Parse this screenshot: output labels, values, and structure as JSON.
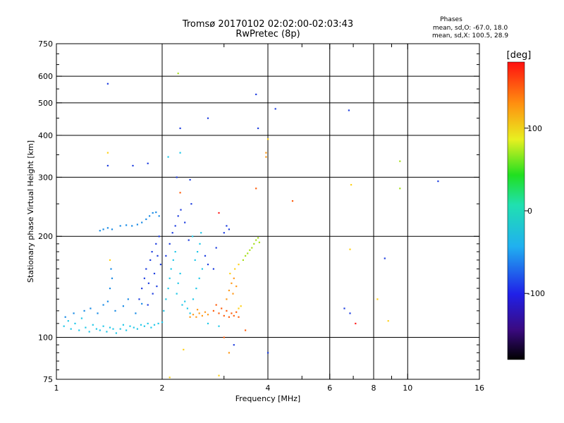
{
  "chart_data": {
    "type": "scatter",
    "title_line1": "Tromsø 20170102 02:02:00-02:03:43",
    "title_line2": "RwPretec (8p)",
    "stats": {
      "title": "Phases",
      "line_o": "mean, sd,O: -67.0, 18.0",
      "line_x": "mean, sd,X: 100.5, 28.9"
    },
    "xlabel": "Frequency [MHz]",
    "ylabel": "Stationary phase Virtual Height [km]",
    "x_scale": "log",
    "y_scale": "log",
    "xlim": [
      1,
      16
    ],
    "ylim": [
      75,
      750
    ],
    "xticks": [
      1,
      2,
      4,
      6,
      8,
      10,
      16
    ],
    "xticks_minor": [
      3,
      5,
      7,
      9
    ],
    "yticks": [
      75,
      100,
      200,
      300,
      400,
      500,
      600,
      750
    ],
    "grid_x": [
      2,
      4,
      6,
      8,
      10
    ],
    "grid_y": [
      100,
      200,
      300,
      400,
      500,
      600
    ],
    "colorbar": {
      "label": "[deg]",
      "range": [
        -180,
        180
      ],
      "ticks": [
        100,
        0,
        -100
      ]
    },
    "grid": true,
    "points": [
      {
        "f": 1.05,
        "h": 108,
        "c": "#22c8e8"
      },
      {
        "f": 1.08,
        "h": 112,
        "c": "#22c8e8"
      },
      {
        "f": 1.1,
        "h": 106,
        "c": "#22c8e8"
      },
      {
        "f": 1.13,
        "h": 110,
        "c": "#22c8e8"
      },
      {
        "f": 1.16,
        "h": 105,
        "c": "#22c8e8"
      },
      {
        "f": 1.18,
        "h": 114,
        "c": "#22c8e8"
      },
      {
        "f": 1.21,
        "h": 107,
        "c": "#22c8e8"
      },
      {
        "f": 1.24,
        "h": 104,
        "c": "#22c8e8"
      },
      {
        "f": 1.27,
        "h": 109,
        "c": "#22c8e8"
      },
      {
        "f": 1.3,
        "h": 106,
        "c": "#22c8e8"
      },
      {
        "f": 1.33,
        "h": 105,
        "c": "#22c8e8"
      },
      {
        "f": 1.36,
        "h": 108,
        "c": "#22c8e8"
      },
      {
        "f": 1.39,
        "h": 104,
        "c": "#22c8e8"
      },
      {
        "f": 1.42,
        "h": 107,
        "c": "#22c8e8"
      },
      {
        "f": 1.45,
        "h": 106,
        "c": "#22c8e8"
      },
      {
        "f": 1.48,
        "h": 103,
        "c": "#22c8e8"
      },
      {
        "f": 1.52,
        "h": 106,
        "c": "#22c8e8"
      },
      {
        "f": 1.55,
        "h": 109,
        "c": "#22c8e8"
      },
      {
        "f": 1.58,
        "h": 105,
        "c": "#22c8e8"
      },
      {
        "f": 1.62,
        "h": 108,
        "c": "#22c8e8"
      },
      {
        "f": 1.66,
        "h": 107,
        "c": "#22c8e8"
      },
      {
        "f": 1.7,
        "h": 106,
        "c": "#22c8e8"
      },
      {
        "f": 1.74,
        "h": 109,
        "c": "#22c8e8"
      },
      {
        "f": 1.78,
        "h": 108,
        "c": "#22c8e8"
      },
      {
        "f": 1.82,
        "h": 110,
        "c": "#22c8e8"
      },
      {
        "f": 1.86,
        "h": 107,
        "c": "#22c8e8"
      },
      {
        "f": 1.9,
        "h": 109,
        "c": "#22c8e8"
      },
      {
        "f": 1.95,
        "h": 110,
        "c": "#22c8e8"
      },
      {
        "f": 2.0,
        "h": 111,
        "c": "#22c8e8"
      },
      {
        "f": 1.06,
        "h": 115,
        "c": "#1a8ce6"
      },
      {
        "f": 1.12,
        "h": 118,
        "c": "#1a8ce6"
      },
      {
        "f": 1.2,
        "h": 120,
        "c": "#1a8ce6"
      },
      {
        "f": 1.25,
        "h": 122,
        "c": "#1a8ce6"
      },
      {
        "f": 1.31,
        "h": 118,
        "c": "#1a8ce6"
      },
      {
        "f": 1.36,
        "h": 125,
        "c": "#1a8ce6"
      },
      {
        "f": 1.4,
        "h": 128,
        "c": "#1a8ce6"
      },
      {
        "f": 1.47,
        "h": 120,
        "c": "#1a8ce6"
      },
      {
        "f": 1.55,
        "h": 124,
        "c": "#1a8ce6"
      },
      {
        "f": 1.6,
        "h": 130,
        "c": "#1a8ce6"
      },
      {
        "f": 1.68,
        "h": 118,
        "c": "#1a8ce6"
      },
      {
        "f": 1.75,
        "h": 126,
        "c": "#1a8ce6"
      },
      {
        "f": 1.42,
        "h": 140,
        "c": "#1a8ce6"
      },
      {
        "f": 1.44,
        "h": 150,
        "c": "#1a8ce6"
      },
      {
        "f": 1.43,
        "h": 160,
        "c": "#1a8ce6"
      },
      {
        "f": 1.33,
        "h": 208,
        "c": "#1a8ce6"
      },
      {
        "f": 1.36,
        "h": 210,
        "c": "#1a8ce6"
      },
      {
        "f": 1.4,
        "h": 212,
        "c": "#1a8ce6"
      },
      {
        "f": 1.44,
        "h": 210,
        "c": "#1a8ce6"
      },
      {
        "f": 1.52,
        "h": 215,
        "c": "#1a8ce6"
      },
      {
        "f": 1.58,
        "h": 216,
        "c": "#1a8ce6"
      },
      {
        "f": 1.64,
        "h": 215,
        "c": "#1a8ce6"
      },
      {
        "f": 1.7,
        "h": 217,
        "c": "#1a8ce6"
      },
      {
        "f": 1.75,
        "h": 220,
        "c": "#1a8ce6"
      },
      {
        "f": 1.8,
        "h": 225,
        "c": "#1a8ce6"
      },
      {
        "f": 1.84,
        "h": 230,
        "c": "#1a8ce6"
      },
      {
        "f": 1.88,
        "h": 235,
        "c": "#1a8ce6"
      },
      {
        "f": 1.92,
        "h": 236,
        "c": "#1a8ce6"
      },
      {
        "f": 1.96,
        "h": 230,
        "c": "#1a8ce6"
      },
      {
        "f": 1.72,
        "h": 130,
        "c": "#2040e0"
      },
      {
        "f": 1.75,
        "h": 140,
        "c": "#2040e0"
      },
      {
        "f": 1.78,
        "h": 150,
        "c": "#2040e0"
      },
      {
        "f": 1.8,
        "h": 160,
        "c": "#2040e0"
      },
      {
        "f": 1.83,
        "h": 145,
        "c": "#2040e0"
      },
      {
        "f": 1.85,
        "h": 170,
        "c": "#2040e0"
      },
      {
        "f": 1.87,
        "h": 180,
        "c": "#2040e0"
      },
      {
        "f": 1.9,
        "h": 155,
        "c": "#2040e0"
      },
      {
        "f": 1.92,
        "h": 190,
        "c": "#2040e0"
      },
      {
        "f": 1.94,
        "h": 175,
        "c": "#2040e0"
      },
      {
        "f": 1.96,
        "h": 200,
        "c": "#2040e0"
      },
      {
        "f": 1.98,
        "h": 165,
        "c": "#2040e0"
      },
      {
        "f": 1.82,
        "h": 125,
        "c": "#2040e0"
      },
      {
        "f": 1.88,
        "h": 135,
        "c": "#2040e0"
      },
      {
        "f": 1.93,
        "h": 142,
        "c": "#2040e0"
      },
      {
        "f": 2.02,
        "h": 120,
        "c": "#22c8e8"
      },
      {
        "f": 2.05,
        "h": 130,
        "c": "#22c8e8"
      },
      {
        "f": 2.08,
        "h": 140,
        "c": "#22c8e8"
      },
      {
        "f": 2.1,
        "h": 150,
        "c": "#22c8e8"
      },
      {
        "f": 2.12,
        "h": 160,
        "c": "#22c8e8"
      },
      {
        "f": 2.15,
        "h": 170,
        "c": "#22c8e8"
      },
      {
        "f": 2.18,
        "h": 180,
        "c": "#22c8e8"
      },
      {
        "f": 2.2,
        "h": 135,
        "c": "#22c8e8"
      },
      {
        "f": 2.22,
        "h": 145,
        "c": "#22c8e8"
      },
      {
        "f": 2.25,
        "h": 155,
        "c": "#22c8e8"
      },
      {
        "f": 2.28,
        "h": 125,
        "c": "#22c8e8"
      },
      {
        "f": 2.32,
        "h": 128,
        "c": "#22c8e8"
      },
      {
        "f": 2.36,
        "h": 122,
        "c": "#22c8e8"
      },
      {
        "f": 2.4,
        "h": 118,
        "c": "#22c8e8"
      },
      {
        "f": 2.45,
        "h": 130,
        "c": "#22c8e8"
      },
      {
        "f": 2.5,
        "h": 140,
        "c": "#22c8e8"
      },
      {
        "f": 2.55,
        "h": 150,
        "c": "#22c8e8"
      },
      {
        "f": 2.6,
        "h": 160,
        "c": "#22c8e8"
      },
      {
        "f": 2.48,
        "h": 170,
        "c": "#22c8e8"
      },
      {
        "f": 2.52,
        "h": 180,
        "c": "#22c8e8"
      },
      {
        "f": 2.56,
        "h": 190,
        "c": "#22c8e8"
      },
      {
        "f": 2.44,
        "h": 200,
        "c": "#22c8e8"
      },
      {
        "f": 2.58,
        "h": 205,
        "c": "#22c8e8"
      },
      {
        "f": 2.05,
        "h": 175,
        "c": "#2040e0"
      },
      {
        "f": 2.1,
        "h": 190,
        "c": "#2040e0"
      },
      {
        "f": 2.14,
        "h": 205,
        "c": "#2040e0"
      },
      {
        "f": 2.18,
        "h": 215,
        "c": "#2040e0"
      },
      {
        "f": 2.22,
        "h": 230,
        "c": "#2040e0"
      },
      {
        "f": 2.26,
        "h": 240,
        "c": "#2040e0"
      },
      {
        "f": 2.32,
        "h": 220,
        "c": "#2040e0"
      },
      {
        "f": 2.38,
        "h": 195,
        "c": "#2040e0"
      },
      {
        "f": 2.42,
        "h": 250,
        "c": "#2040e0"
      },
      {
        "f": 2.65,
        "h": 175,
        "c": "#2040e0"
      },
      {
        "f": 2.7,
        "h": 165,
        "c": "#2040e0"
      },
      {
        "f": 2.8,
        "h": 160,
        "c": "#2040e0"
      },
      {
        "f": 2.4,
        "h": 115,
        "c": "#ff9a1a"
      },
      {
        "f": 2.45,
        "h": 117,
        "c": "#ff9a1a"
      },
      {
        "f": 2.5,
        "h": 115,
        "c": "#ff9a1a"
      },
      {
        "f": 2.55,
        "h": 118,
        "c": "#ff9a1a"
      },
      {
        "f": 2.6,
        "h": 116,
        "c": "#ff9a1a"
      },
      {
        "f": 2.65,
        "h": 119,
        "c": "#ff9a1a"
      },
      {
        "f": 2.7,
        "h": 117,
        "c": "#ff9a1a"
      },
      {
        "f": 2.52,
        "h": 121,
        "c": "#ff9a1a"
      },
      {
        "f": 2.8,
        "h": 120,
        "c": "#ff6010"
      },
      {
        "f": 2.85,
        "h": 125,
        "c": "#ff6010"
      },
      {
        "f": 2.9,
        "h": 118,
        "c": "#ff6010"
      },
      {
        "f": 2.95,
        "h": 122,
        "c": "#ff6010"
      },
      {
        "f": 3.0,
        "h": 116,
        "c": "#ff6010"
      },
      {
        "f": 3.05,
        "h": 120,
        "c": "#ff6010"
      },
      {
        "f": 3.1,
        "h": 115,
        "c": "#ff6010"
      },
      {
        "f": 3.15,
        "h": 118,
        "c": "#ff6010"
      },
      {
        "f": 3.2,
        "h": 116,
        "c": "#ff6010"
      },
      {
        "f": 3.25,
        "h": 119,
        "c": "#ff6010"
      },
      {
        "f": 3.3,
        "h": 115,
        "c": "#ff6010"
      },
      {
        "f": 3.05,
        "h": 130,
        "c": "#ff9a1a"
      },
      {
        "f": 3.1,
        "h": 138,
        "c": "#ff9a1a"
      },
      {
        "f": 3.15,
        "h": 145,
        "c": "#ff9a1a"
      },
      {
        "f": 3.2,
        "h": 150,
        "c": "#ff9a1a"
      },
      {
        "f": 3.18,
        "h": 135,
        "c": "#ff9a1a"
      },
      {
        "f": 3.25,
        "h": 142,
        "c": "#ff9a1a"
      },
      {
        "f": 3.12,
        "h": 155,
        "c": "#ffd21a"
      },
      {
        "f": 3.22,
        "h": 160,
        "c": "#ffd21a"
      },
      {
        "f": 3.3,
        "h": 165,
        "c": "#ffd21a"
      },
      {
        "f": 3.4,
        "h": 170,
        "c": "#a8e020"
      },
      {
        "f": 3.45,
        "h": 175,
        "c": "#a8e020"
      },
      {
        "f": 3.5,
        "h": 178,
        "c": "#a8e020"
      },
      {
        "f": 3.55,
        "h": 182,
        "c": "#a8e020"
      },
      {
        "f": 3.6,
        "h": 185,
        "c": "#a8e020"
      },
      {
        "f": 3.65,
        "h": 190,
        "c": "#a8e020"
      },
      {
        "f": 3.7,
        "h": 195,
        "c": "#a8e020"
      },
      {
        "f": 3.75,
        "h": 198,
        "c": "#a8e020"
      },
      {
        "f": 3.78,
        "h": 192,
        "c": "#a8e020"
      },
      {
        "f": 3.3,
        "h": 122,
        "c": "#ffd21a"
      },
      {
        "f": 3.35,
        "h": 124,
        "c": "#ffd21a"
      },
      {
        "f": 3.45,
        "h": 105,
        "c": "#ff6010"
      },
      {
        "f": 2.85,
        "h": 185,
        "c": "#2040e0"
      },
      {
        "f": 3.0,
        "h": 205,
        "c": "#2040e0"
      },
      {
        "f": 3.05,
        "h": 215,
        "c": "#2040e0"
      },
      {
        "f": 3.1,
        "h": 210,
        "c": "#2040e0"
      },
      {
        "f": 2.7,
        "h": 110,
        "c": "#22c8e8"
      },
      {
        "f": 2.9,
        "h": 108,
        "c": "#22c8e8"
      },
      {
        "f": 1.4,
        "h": 570,
        "c": "#2040e0"
      },
      {
        "f": 2.22,
        "h": 612,
        "c": "#a8e020"
      },
      {
        "f": 2.7,
        "h": 450,
        "c": "#2040e0"
      },
      {
        "f": 3.7,
        "h": 530,
        "c": "#2040e0"
      },
      {
        "f": 4.2,
        "h": 480,
        "c": "#2040e0"
      },
      {
        "f": 6.8,
        "h": 475,
        "c": "#2040e0"
      },
      {
        "f": 3.75,
        "h": 420,
        "c": "#2040e0"
      },
      {
        "f": 2.25,
        "h": 420,
        "c": "#2040e0"
      },
      {
        "f": 4.0,
        "h": 390,
        "c": "#ffd21a"
      },
      {
        "f": 1.4,
        "h": 355,
        "c": "#ffd21a"
      },
      {
        "f": 1.4,
        "h": 325,
        "c": "#2040e0"
      },
      {
        "f": 1.65,
        "h": 325,
        "c": "#2040e0"
      },
      {
        "f": 1.82,
        "h": 330,
        "c": "#2040e0"
      },
      {
        "f": 2.08,
        "h": 345,
        "c": "#22c8e8"
      },
      {
        "f": 2.25,
        "h": 355,
        "c": "#22c8e8"
      },
      {
        "f": 3.95,
        "h": 355,
        "c": "#ff9a1a"
      },
      {
        "f": 3.95,
        "h": 345,
        "c": "#ff9a1a"
      },
      {
        "f": 9.5,
        "h": 335,
        "c": "#a8e020"
      },
      {
        "f": 2.2,
        "h": 300,
        "c": "#2040e0"
      },
      {
        "f": 2.4,
        "h": 295,
        "c": "#2040e0"
      },
      {
        "f": 6.9,
        "h": 285,
        "c": "#ffd21a"
      },
      {
        "f": 9.5,
        "h": 278,
        "c": "#a8e020"
      },
      {
        "f": 12.2,
        "h": 292,
        "c": "#2040e0"
      },
      {
        "f": 3.7,
        "h": 278,
        "c": "#ff6010"
      },
      {
        "f": 2.25,
        "h": 270,
        "c": "#ff6010"
      },
      {
        "f": 4.7,
        "h": 255,
        "c": "#ff6010"
      },
      {
        "f": 2.9,
        "h": 235,
        "c": "#ff2020"
      },
      {
        "f": 6.85,
        "h": 183,
        "c": "#ffd21a"
      },
      {
        "f": 8.6,
        "h": 172,
        "c": "#2040e0"
      },
      {
        "f": 8.2,
        "h": 130,
        "c": "#ffd21a"
      },
      {
        "f": 6.6,
        "h": 122,
        "c": "#2040e0"
      },
      {
        "f": 6.85,
        "h": 118,
        "c": "#2040e0"
      },
      {
        "f": 7.1,
        "h": 110,
        "c": "#ff2020"
      },
      {
        "f": 8.8,
        "h": 112,
        "c": "#ffd21a"
      },
      {
        "f": 1.42,
        "h": 170,
        "c": "#ffd21a"
      },
      {
        "f": 3.0,
        "h": 100,
        "c": "#ff6010"
      },
      {
        "f": 3.2,
        "h": 95,
        "c": "#2040e0"
      },
      {
        "f": 3.1,
        "h": 90,
        "c": "#ff9a1a"
      },
      {
        "f": 2.3,
        "h": 92,
        "c": "#ffd21a"
      },
      {
        "f": 4.0,
        "h": 90,
        "c": "#2040e0"
      },
      {
        "f": 2.9,
        "h": 77,
        "c": "#ffd21a"
      },
      {
        "f": 2.1,
        "h": 76,
        "c": "#ffd21a"
      }
    ]
  }
}
